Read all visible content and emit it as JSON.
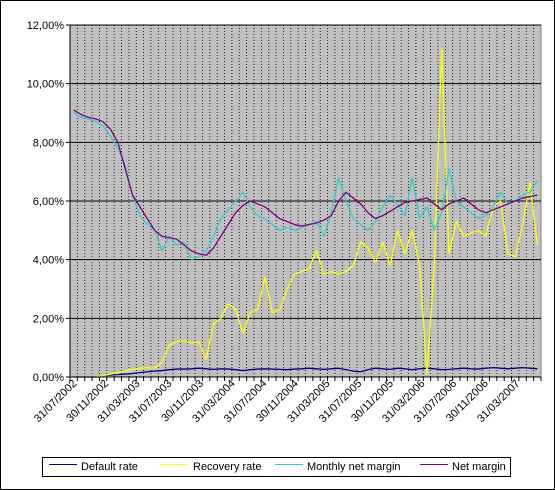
{
  "chart_data": {
    "type": "line",
    "title": "",
    "xlabel": "",
    "ylabel": "",
    "ylim": [
      0,
      12
    ],
    "y_ticks": [
      "0,00%",
      "2,00%",
      "4,00%",
      "6,00%",
      "8,00%",
      "10,00%",
      "12,00%"
    ],
    "x_tick_labels": [
      "31/07/2002",
      "30/11/2002",
      "31/03/2003",
      "31/07/2003",
      "30/11/2003",
      "31/03/2004",
      "31/07/2004",
      "30/11/2004",
      "31/03/2005",
      "31/07/2005",
      "30/11/2005",
      "31/03/2006",
      "31/07/2006",
      "30/11/2006",
      "31/03/2007"
    ],
    "grid": {
      "vertical_per_period": true,
      "horizontal_major": true
    },
    "plot_background": "#c0c0c0",
    "legend_position": "bottom",
    "series": [
      {
        "name": "Default rate",
        "color": "#000080",
        "values": [
          0,
          0,
          0,
          0,
          0.05,
          0.07,
          0.08,
          0.1,
          0.12,
          0.15,
          0.18,
          0.2,
          0.22,
          0.25,
          0.27,
          0.27,
          0.28,
          0.3,
          0.28,
          0.26,
          0.28,
          0.27,
          0.25,
          0.22,
          0.25,
          0.27,
          0.28,
          0.27,
          0.26,
          0.25,
          0.27,
          0.28,
          0.3,
          0.28,
          0.26,
          0.28,
          0.3,
          0.25,
          0.2,
          0.18,
          0.25,
          0.3,
          0.28,
          0.26,
          0.3,
          0.28,
          0.25,
          0.28,
          0.3,
          0.28,
          0.25,
          0.26,
          0.28,
          0.3,
          0.28,
          0.27,
          0.3,
          0.32,
          0.3,
          0.28,
          0.3,
          0.32,
          0.3,
          0.28
        ]
      },
      {
        "name": "Recovery rate",
        "color": "#ffff00",
        "values": [
          0,
          0,
          0,
          0,
          0.05,
          0.1,
          0.15,
          0.2,
          0.25,
          0.3,
          0.32,
          0.3,
          0.5,
          1.1,
          1.2,
          1.25,
          1.15,
          1.2,
          0.6,
          1.8,
          2.0,
          2.5,
          2.3,
          1.5,
          2.2,
          2.3,
          3.4,
          2.2,
          2.3,
          3.0,
          3.5,
          3.6,
          3.7,
          4.3,
          3.5,
          3.6,
          3.5,
          3.6,
          3.8,
          4.6,
          4.4,
          3.9,
          4.6,
          3.8,
          5.0,
          4.2,
          5.0,
          3.8,
          0.1,
          3.8,
          11.2,
          4.2,
          5.3,
          4.8,
          4.9,
          5.0,
          4.8,
          5.8,
          6.0,
          4.2,
          4.1,
          5.2,
          6.6,
          4.5
        ]
      },
      {
        "name": "Monthly net margin",
        "color": "#33cccc",
        "values": [
          9.0,
          8.85,
          8.8,
          8.7,
          8.55,
          8.2,
          7.8,
          7.2,
          6.2,
          5.5,
          5.2,
          5.0,
          4.3,
          4.8,
          4.5,
          4.6,
          4.0,
          4.1,
          4.3,
          4.8,
          5.4,
          5.7,
          6.0,
          6.3,
          5.8,
          5.5,
          5.4,
          5.2,
          5.0,
          5.1,
          5.0,
          5.1,
          5.2,
          5.3,
          4.8,
          5.6,
          6.8,
          6.0,
          5.4,
          5.2,
          5.0,
          5.3,
          5.8,
          6.2,
          5.9,
          5.5,
          6.8,
          5.4,
          5.8,
          5.0,
          5.6,
          7.1,
          6.0,
          5.8,
          5.6,
          5.4,
          5.5,
          5.8,
          6.3,
          5.9,
          6.0,
          6.2,
          6.3,
          6.7
        ]
      },
      {
        "name": "Net margin",
        "color": "#800080",
        "values": [
          9.1,
          8.95,
          8.85,
          8.8,
          8.7,
          8.45,
          8.0,
          7.1,
          6.2,
          5.8,
          5.4,
          5.0,
          4.8,
          4.75,
          4.7,
          4.5,
          4.3,
          4.2,
          4.15,
          4.4,
          4.8,
          5.2,
          5.6,
          5.85,
          6.0,
          5.9,
          5.8,
          5.6,
          5.4,
          5.3,
          5.2,
          5.15,
          5.2,
          5.25,
          5.35,
          5.5,
          6.0,
          6.3,
          6.1,
          5.9,
          5.6,
          5.4,
          5.5,
          5.65,
          5.8,
          5.95,
          6.0,
          6.05,
          6.1,
          5.9,
          5.7,
          5.9,
          6.0,
          6.1,
          5.9,
          5.7,
          5.6,
          5.7,
          5.8,
          5.9,
          6.0,
          6.1,
          6.15,
          6.2
        ]
      }
    ]
  }
}
